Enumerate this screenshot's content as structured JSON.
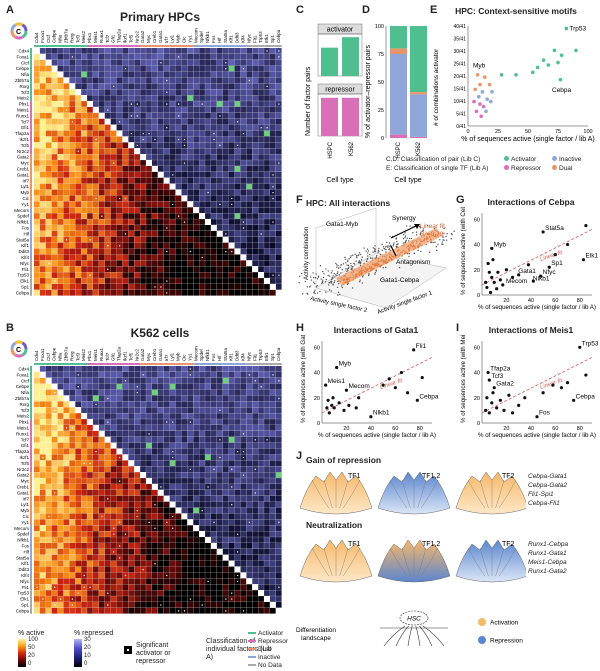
{
  "panelA": {
    "letter": "A",
    "title": "Primary HPCs",
    "factors": [
      "Cdx4",
      "Foxa1",
      "Ctcf",
      "Cebpe",
      "Nfia",
      "Zbtb7a",
      "Rxrg",
      "Tcf3",
      "Meis2",
      "Pbx1",
      "Meis1",
      "Runx1",
      "Tcf7",
      "Gfi1",
      "Tfap2a",
      "Ikzf1",
      "Tcf5",
      "Nr2c2",
      "Gata2",
      "Myc",
      "Creb1",
      "Gata1",
      "Irf7",
      "Lyl1",
      "Myb",
      "Cic",
      "Yy1",
      "Mecom",
      "Spdef",
      "Nfkb1",
      "Fos",
      "Hlf",
      "Stat5a",
      "Klf1",
      "Ddit3",
      "Klf4",
      "Nfyc",
      "Fli1",
      "Trp53",
      "Elk1",
      "Sp1",
      "Cebpa"
    ]
  },
  "panelB": {
    "letter": "B",
    "title": "K562 cells",
    "factors": [
      "Cdx4",
      "Foxa1",
      "Ctcf",
      "Cebpe",
      "Nfia",
      "Zbtb7a",
      "Rxrg",
      "Tcf3",
      "Meis2",
      "Pbx1",
      "Meis1",
      "Runx1",
      "Tcf7",
      "Gfi1",
      "Tfap2a",
      "Ikzf1",
      "Tcf5",
      "Nr2c2",
      "Gata2",
      "Myc",
      "Creb1",
      "Gata1",
      "Irf7",
      "Lyl1",
      "Myb",
      "Cic",
      "Yy1",
      "Mecom",
      "Spdef",
      "Nfkb1",
      "Fos",
      "Hlf",
      "Stat5a",
      "Klf1",
      "Ddit3",
      "Klf4",
      "Nfyc",
      "Fli1",
      "Trp53",
      "Elk1",
      "Sp1",
      "Cebpa"
    ]
  },
  "legend": {
    "active_title": "% active",
    "active_ticks": [
      "100",
      "50",
      "20",
      "0"
    ],
    "repressed_title": "% repressed",
    "repressed_ticks": [
      "30",
      "20",
      "10",
      "0"
    ],
    "significant": "Significant activator or repressor",
    "classification_title": "Classification of individual factors (Lib A)",
    "classes": [
      {
        "label": "Activator",
        "color": "#4fbf8f"
      },
      {
        "label": "Repressor",
        "color": "#d86fb7"
      },
      {
        "label": "Dual",
        "color": "#e8956a"
      },
      {
        "label": "Inactive",
        "color": "#8fa6d8"
      },
      {
        "label": "No Data",
        "color": "#aaaaaa"
      }
    ]
  },
  "panelC": {
    "letter": "C",
    "chart_data": {
      "type": "bar",
      "categories": [
        "HSPC",
        "K562"
      ],
      "series": [
        {
          "name": "activator",
          "values": [
            270,
            370
          ]
        },
        {
          "name": "repressor",
          "values": [
            280,
            280
          ]
        }
      ],
      "ylabel": "Number of factor pairs",
      "xlabel": "Cell type"
    }
  },
  "panelD": {
    "letter": "D",
    "chart_data": {
      "type": "bar",
      "categories": [
        "HSPC",
        "K562"
      ],
      "series": [
        {
          "name": "Repressor",
          "values": [
            3,
            1
          ]
        },
        {
          "name": "Inactive",
          "values": [
            72,
            38
          ]
        },
        {
          "name": "Dual",
          "values": [
            5,
            2
          ]
        },
        {
          "name": "Activator",
          "values": [
            20,
            59
          ]
        }
      ],
      "ylabel": "% of activator–repressor pairs",
      "xlabel": "Cell type",
      "yticks": [
        "0",
        "25",
        "50",
        "75",
        "100"
      ],
      "ylim": [
        0,
        100
      ]
    }
  },
  "panelE": {
    "letter": "E",
    "title": "HPC: Context-sensitive motifs",
    "chart_data": {
      "type": "scatter",
      "ylabel": "# of combinations activator",
      "xlabel": "% of sequences active (single factor / lib A)",
      "yticks": [
        "0/41",
        "5/41",
        "10/41",
        "15/41",
        "20/41",
        "25/41",
        "30/41",
        "35/41",
        "40/41"
      ],
      "xticks": [
        "0",
        "25",
        "50",
        "75",
        "100"
      ],
      "annotations": [
        "Trp53",
        "Myb",
        "Cebpa"
      ],
      "points": [
        {
          "x": 82,
          "y": 40,
          "c": "a"
        },
        {
          "x": 90,
          "y": 31,
          "c": "a"
        },
        {
          "x": 72,
          "y": 31,
          "c": "a"
        },
        {
          "x": 78,
          "y": 29,
          "c": "a"
        },
        {
          "x": 63,
          "y": 27,
          "c": "a"
        },
        {
          "x": 58,
          "y": 24,
          "c": "a"
        },
        {
          "x": 67,
          "y": 25,
          "c": "a"
        },
        {
          "x": 75,
          "y": 26,
          "c": "a"
        },
        {
          "x": 54,
          "y": 22,
          "c": "a"
        },
        {
          "x": 77,
          "y": 19,
          "c": "a"
        },
        {
          "x": 40,
          "y": 21,
          "c": "a"
        },
        {
          "x": 28,
          "y": 21,
          "c": "a"
        },
        {
          "x": 8,
          "y": 21,
          "c": "d"
        },
        {
          "x": 14,
          "y": 20,
          "c": "d"
        },
        {
          "x": 10,
          "y": 17,
          "c": "d"
        },
        {
          "x": 18,
          "y": 17,
          "c": "d"
        },
        {
          "x": 6,
          "y": 15,
          "c": "d"
        },
        {
          "x": 12,
          "y": 14,
          "c": "i"
        },
        {
          "x": 20,
          "y": 14,
          "c": "i"
        },
        {
          "x": 9,
          "y": 12,
          "c": "i"
        },
        {
          "x": 16,
          "y": 11,
          "c": "i"
        },
        {
          "x": 5,
          "y": 10,
          "c": "r"
        },
        {
          "x": 10,
          "y": 9,
          "c": "r"
        },
        {
          "x": 13,
          "y": 8,
          "c": "r"
        },
        {
          "x": 7,
          "y": 6,
          "c": "r"
        },
        {
          "x": 11,
          "y": 4,
          "c": "r"
        },
        {
          "x": 15,
          "y": 6,
          "c": "i"
        },
        {
          "x": 19,
          "y": 10,
          "c": "i"
        }
      ]
    },
    "legend_rows": [
      "C,D: Classification of pair (Lib C)",
      "E: Classification of single TF (Lib A)"
    ],
    "legend_items": [
      "Activator",
      "Inactive",
      "Repressor",
      "Dual"
    ]
  },
  "panelF": {
    "letter": "F",
    "title": "HPC: All interactions",
    "labels": {
      "synergy": "Synergy",
      "antagonism": "Antagonism",
      "gata1_myb": "Gata1-Myb",
      "gata1_cebpa": "Gata1-Cebpa",
      "linear_fit": "Linear fit,",
      "r2": "R²=0.79",
      "axis_z": "Activity combination",
      "axis_x": "Activity single factor 1",
      "axis_y": "Activity single factor 2"
    }
  },
  "panelG": {
    "letter": "G",
    "title": "Interactions of Cebpa",
    "chart_data": {
      "type": "scatter",
      "xlabel": "% of sequences active (single factor / lib A)",
      "ylabel": "% of sequences active (with Cebpa)",
      "xticks": [
        "20",
        "40",
        "60",
        "80"
      ],
      "yticks": [
        "0",
        "20",
        "40",
        "60"
      ],
      "xlim": [
        0,
        90
      ],
      "ylim": [
        0,
        65
      ],
      "fit_label": "Linear fit",
      "annotations": [
        {
          "label": "Stat5a",
          "x": 50,
          "y": 50
        },
        {
          "label": "Myb",
          "x": 8,
          "y": 37
        },
        {
          "label": "Elk1",
          "x": 83,
          "y": 28
        },
        {
          "label": "Sp1",
          "x": 55,
          "y": 22
        },
        {
          "label": "Gata1",
          "x": 28,
          "y": 16
        },
        {
          "label": "Nfyc",
          "x": 48,
          "y": 15
        },
        {
          "label": "Nlkb1",
          "x": 40,
          "y": 10
        },
        {
          "label": "Mecom",
          "x": 18,
          "y": 8
        }
      ],
      "points": [
        [
          50,
          50
        ],
        [
          8,
          37
        ],
        [
          85,
          55
        ],
        [
          83,
          28
        ],
        [
          55,
          22
        ],
        [
          30,
          16
        ],
        [
          48,
          15
        ],
        [
          42,
          11
        ],
        [
          17,
          8
        ],
        [
          5,
          25
        ],
        [
          6,
          18
        ],
        [
          8,
          14
        ],
        [
          10,
          10
        ],
        [
          4,
          6
        ],
        [
          12,
          5
        ],
        [
          15,
          12
        ],
        [
          20,
          20
        ],
        [
          7,
          2
        ],
        [
          3,
          10
        ],
        [
          13,
          18
        ],
        [
          25,
          14
        ],
        [
          60,
          32
        ],
        [
          38,
          24
        ],
        [
          70,
          40
        ],
        [
          9,
          28
        ]
      ]
    }
  },
  "panelH": {
    "letter": "H",
    "title": "Interactions of Gata1",
    "chart_data": {
      "type": "scatter",
      "xlabel": "% of sequences active (single factor / lib A)",
      "ylabel": "% of sequences active (with Gata1)",
      "xticks": [
        "20",
        "40",
        "60",
        "80"
      ],
      "yticks": [
        "0",
        "20",
        "40",
        "60"
      ],
      "xlim": [
        0,
        90
      ],
      "ylim": [
        0,
        65
      ],
      "fit_label": "Linear fit",
      "annotations": [
        {
          "label": "Fli1",
          "x": 75,
          "y": 58
        },
        {
          "label": "Myb",
          "x": 12,
          "y": 44
        },
        {
          "label": "Meis1",
          "x": 3,
          "y": 30
        },
        {
          "label": "Mecom",
          "x": 20,
          "y": 26
        },
        {
          "label": "Cebpa",
          "x": 78,
          "y": 18
        },
        {
          "label": "Nlkb1",
          "x": 40,
          "y": 5
        }
      ],
      "points": [
        [
          75,
          58
        ],
        [
          12,
          44
        ],
        [
          3,
          30
        ],
        [
          20,
          26
        ],
        [
          78,
          18
        ],
        [
          40,
          5
        ],
        [
          5,
          18
        ],
        [
          8,
          14
        ],
        [
          10,
          12
        ],
        [
          6,
          8
        ],
        [
          14,
          16
        ],
        [
          18,
          10
        ],
        [
          22,
          14
        ],
        [
          28,
          12
        ],
        [
          50,
          30
        ],
        [
          60,
          28
        ],
        [
          55,
          35
        ],
        [
          65,
          40
        ],
        [
          70,
          24
        ],
        [
          82,
          36
        ],
        [
          9,
          20
        ],
        [
          4,
          12
        ],
        [
          30,
          20
        ]
      ]
    }
  },
  "panelI": {
    "letter": "I",
    "title": "Interactions of Meis1",
    "chart_data": {
      "type": "scatter",
      "xlabel": "% of sequences active (single factor / lib A)",
      "ylabel": "% of sequences active (with Meis1)",
      "xticks": [
        "20",
        "40",
        "60",
        "80"
      ],
      "yticks": [
        "0",
        "20",
        "40",
        "60"
      ],
      "xlim": [
        0,
        90
      ],
      "ylim": [
        0,
        65
      ],
      "fit_label": "Linear fit",
      "annotations": [
        {
          "label": "Trp53",
          "x": 80,
          "y": 60
        },
        {
          "label": "Tfap2a",
          "x": 5,
          "y": 40
        },
        {
          "label": "Tcf3",
          "x": 6,
          "y": 34
        },
        {
          "label": "Gata2",
          "x": 10,
          "y": 28
        },
        {
          "label": "Cebpa",
          "x": 75,
          "y": 18
        },
        {
          "label": "Fos",
          "x": 45,
          "y": 5
        }
      ],
      "points": [
        [
          80,
          60
        ],
        [
          5,
          40
        ],
        [
          6,
          34
        ],
        [
          10,
          28
        ],
        [
          75,
          18
        ],
        [
          45,
          5
        ],
        [
          4,
          20
        ],
        [
          8,
          16
        ],
        [
          12,
          12
        ],
        [
          6,
          8
        ],
        [
          15,
          18
        ],
        [
          18,
          10
        ],
        [
          22,
          22
        ],
        [
          30,
          14
        ],
        [
          50,
          24
        ],
        [
          58,
          30
        ],
        [
          65,
          28
        ],
        [
          70,
          32
        ],
        [
          85,
          38
        ],
        [
          9,
          24
        ],
        [
          3,
          10
        ],
        [
          25,
          8
        ],
        [
          35,
          20
        ]
      ]
    }
  },
  "panelJ": {
    "letter": "J",
    "gain_title": "Gain of repression",
    "neutralization_title": "Neutralization",
    "tf1": "TF1",
    "tf12": "TF1,2",
    "tf2": "TF2",
    "gain_genes": [
      "Cebpa-Gata1",
      "Cebpa-Gata2",
      "Fli1-Spi1",
      "Cebpa-Fli1"
    ],
    "neutral_genes": [
      "Runx1-Cebpa",
      "Runx1-Gata1",
      "Meis1-Cebpa",
      "Runx1-Gata2"
    ],
    "landscape_label": "Differentiation landscape",
    "hsc": "HSC",
    "activation": "Activation",
    "repression": "Repression"
  }
}
